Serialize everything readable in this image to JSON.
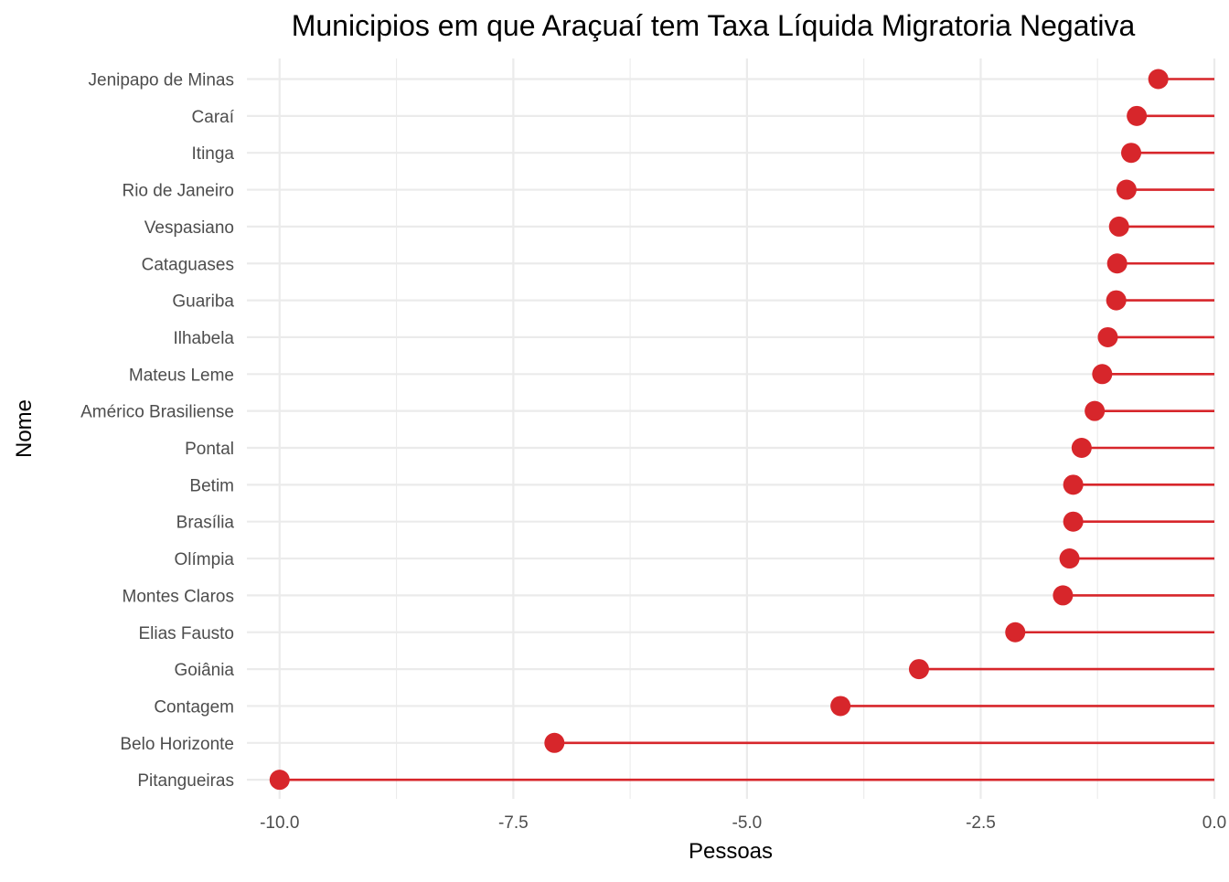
{
  "chart_data": {
    "type": "lollipop",
    "title": "Municipios em que Araçuaí tem Taxa Líquida Migratoria Negativa",
    "xlabel": "Pessoas",
    "ylabel": "Nome",
    "xlim": [
      -10.35,
      0.0
    ],
    "x_ticks": [
      -10.0,
      -7.5,
      -5.0,
      -2.5,
      0.0
    ],
    "x_tick_labels": [
      "-10.0",
      "-7.5",
      "-5.0",
      "-2.5",
      "0.0"
    ],
    "grid": true,
    "color": "#D7262B",
    "categories": [
      "Jenipapo de Minas",
      "Caraí",
      "Itinga",
      "Rio de Janeiro",
      "Vespasiano",
      "Cataguases",
      "Guariba",
      "Ilhabela",
      "Mateus Leme",
      "Américo Brasiliense",
      "Pontal",
      "Betim",
      "Brasília",
      "Olímpia",
      "Montes Claros",
      "Elias Fausto",
      "Goiânia",
      "Contagem",
      "Belo Horizonte",
      "Pitangueiras"
    ],
    "values": [
      -0.6,
      -0.83,
      -0.89,
      -0.94,
      -1.02,
      -1.04,
      -1.05,
      -1.14,
      -1.2,
      -1.28,
      -1.42,
      -1.51,
      -1.51,
      -1.55,
      -1.62,
      -2.13,
      -3.16,
      -4.0,
      -7.06,
      -10.0
    ]
  }
}
